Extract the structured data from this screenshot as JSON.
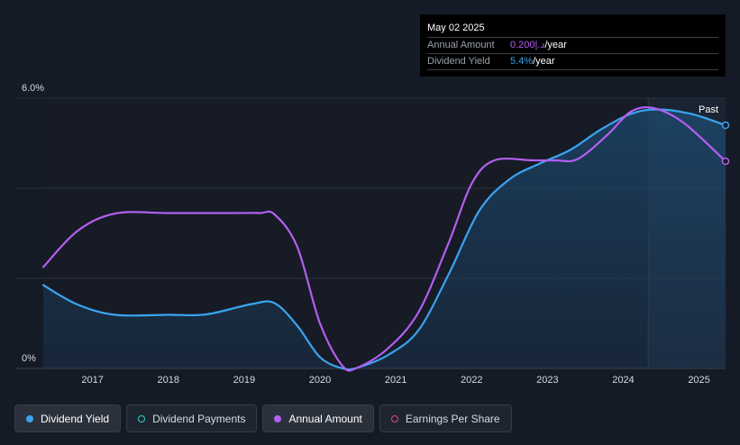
{
  "tooltip": {
    "date": "May 02 2025",
    "rows": [
      {
        "label": "Annual Amount",
        "value": "0.200|.د",
        "unit": "/year"
      },
      {
        "label": "Dividend Yield",
        "value": "5.4%",
        "unit": "/year"
      }
    ]
  },
  "colors": {
    "dividend_yield": "#3ba3f0",
    "dividend_payments": "#2dd4bf",
    "annual_amount": "#b45ff0",
    "earnings_per_share": "#e0457b"
  },
  "legend": [
    {
      "label": "Dividend Yield",
      "marker": "filled"
    },
    {
      "label": "Dividend Payments",
      "marker": "hollow"
    },
    {
      "label": "Annual Amount",
      "marker": "filled"
    },
    {
      "label": "Earnings Per Share",
      "marker": "hollow"
    }
  ],
  "chart_data": {
    "type": "line",
    "x_ticks": [
      "2017",
      "2018",
      "2019",
      "2020",
      "2021",
      "2022",
      "2023",
      "2024",
      "2025"
    ],
    "xlim": [
      2016.35,
      2025.35
    ],
    "y_tick_labels": [
      "6.0%",
      "0%"
    ],
    "ylim": [
      0,
      6.0
    ],
    "past_label": "Past",
    "past_start": 2024.33,
    "series": [
      {
        "name": "Dividend Yield",
        "area": true,
        "x": [
          2016.35,
          2016.8,
          2017.3,
          2018.0,
          2018.5,
          2019.1,
          2019.4,
          2019.7,
          2020.0,
          2020.3,
          2020.5,
          2020.9,
          2021.3,
          2021.7,
          2022.1,
          2022.5,
          2022.9,
          2023.3,
          2023.7,
          2024.1,
          2024.45,
          2024.9,
          2025.35
        ],
        "y": [
          1.85,
          1.42,
          1.19,
          1.19,
          1.2,
          1.43,
          1.45,
          0.95,
          0.25,
          0.0,
          0.02,
          0.3,
          0.85,
          2.1,
          3.5,
          4.2,
          4.55,
          4.85,
          5.3,
          5.65,
          5.75,
          5.65,
          5.4
        ]
      },
      {
        "name": "Annual Amount",
        "area": false,
        "x": [
          2016.35,
          2016.8,
          2017.3,
          2018.0,
          2018.8,
          2019.2,
          2019.4,
          2019.7,
          2020.0,
          2020.3,
          2020.5,
          2020.9,
          2021.3,
          2021.7,
          2022.0,
          2022.3,
          2022.8,
          2023.1,
          2023.4,
          2023.8,
          2024.1,
          2024.4,
          2024.8,
          2025.35
        ],
        "y": [
          2.25,
          3.05,
          3.44,
          3.45,
          3.45,
          3.45,
          3.42,
          2.7,
          1.0,
          0.05,
          0.02,
          0.45,
          1.25,
          2.8,
          4.1,
          4.62,
          4.62,
          4.62,
          4.65,
          5.2,
          5.7,
          5.78,
          5.45,
          4.6
        ]
      }
    ]
  }
}
